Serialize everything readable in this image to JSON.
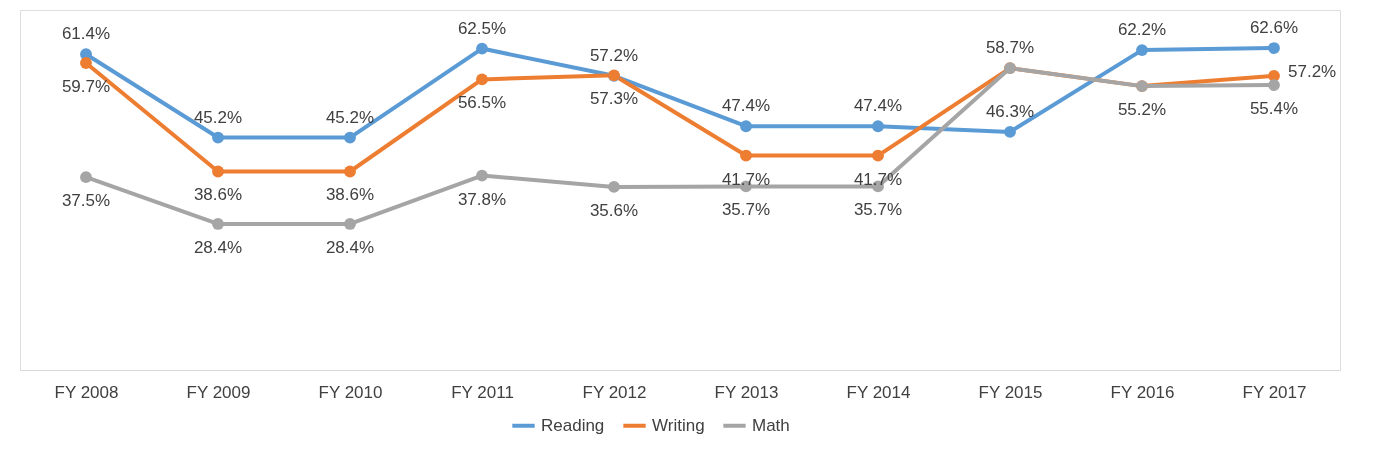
{
  "chart_data": {
    "type": "line",
    "categories": [
      "FY 2008",
      "FY 2009",
      "FY 2010",
      "FY 2011",
      "FY 2012",
      "FY 2013",
      "FY 2014",
      "FY 2015",
      "FY 2016",
      "FY 2017"
    ],
    "series": [
      {
        "name": "Reading",
        "color": "#5b9bd5",
        "values": [
          61.4,
          45.2,
          45.2,
          62.5,
          57.2,
          47.4,
          47.4,
          46.3,
          62.2,
          62.6
        ],
        "value_labels": [
          "61.4%",
          "45.2%",
          "45.2%",
          "62.5%",
          "57.2%",
          "47.4%",
          "47.4%",
          "46.3%",
          "62.2%",
          "62.6%"
        ]
      },
      {
        "name": "Writing",
        "color": "#ed7d31",
        "values": [
          59.7,
          38.6,
          38.6,
          56.5,
          57.3,
          41.7,
          41.7,
          58.7,
          55.2,
          57.2
        ],
        "value_labels": [
          "59.7%",
          "38.6%",
          "38.6%",
          "56.5%",
          "57.3%",
          "41.7%",
          "41.7%",
          "58.7%",
          "55.2%",
          "57.2%"
        ]
      },
      {
        "name": "Math",
        "color": "#a5a5a5",
        "values": [
          37.5,
          28.4,
          28.4,
          37.8,
          35.6,
          35.7,
          35.7,
          58.7,
          55.2,
          55.4
        ],
        "value_labels": [
          "37.5%",
          "28.4%",
          "28.4%",
          "37.8%",
          "35.6%",
          "35.7%",
          "35.7%",
          null,
          null,
          "55.4%"
        ]
      }
    ],
    "ylim": [
      0,
      70
    ],
    "tick_labels": "x",
    "grid": false,
    "legend": "bottom",
    "marker": "circle",
    "line_style": "solid"
  }
}
